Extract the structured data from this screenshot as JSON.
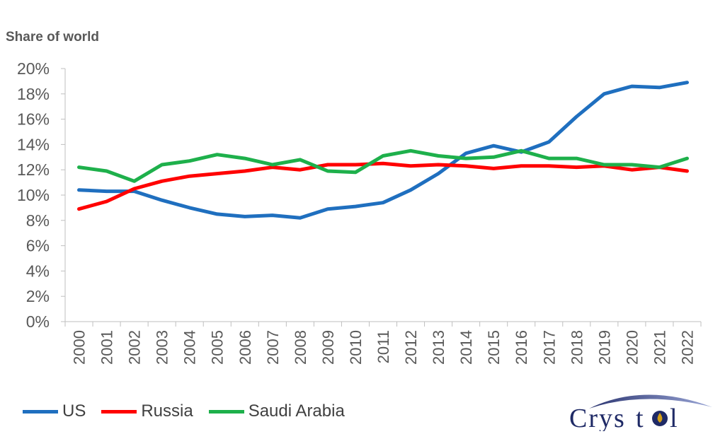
{
  "chart_data": {
    "type": "line",
    "ylabel": "Share of world",
    "categories": [
      "2000",
      "2001",
      "2002",
      "2003",
      "2004",
      "2005",
      "2006",
      "2007",
      "2008",
      "2009",
      "2010",
      "2011",
      "2012",
      "2013",
      "2014",
      "2015",
      "2016",
      "2017",
      "2018",
      "2019",
      "2020",
      "2021",
      "2022"
    ],
    "yticks": [
      "0%",
      "2%",
      "4%",
      "6%",
      "8%",
      "10%",
      "12%",
      "14%",
      "16%",
      "18%",
      "20%"
    ],
    "ylim": [
      0,
      20
    ],
    "grid": false,
    "legend_position": "bottom-left",
    "series": [
      {
        "name": "US",
        "color": "#1F6FBF",
        "values": [
          10.4,
          10.3,
          10.3,
          9.6,
          9.0,
          8.5,
          8.3,
          8.4,
          8.2,
          8.9,
          9.1,
          9.4,
          10.4,
          11.7,
          13.3,
          13.9,
          13.4,
          14.2,
          16.2,
          18.0,
          18.6,
          18.5,
          18.9
        ]
      },
      {
        "name": "Russia",
        "color": "#FF0000",
        "values": [
          8.9,
          9.5,
          10.5,
          11.1,
          11.5,
          11.7,
          11.9,
          12.2,
          12.0,
          12.4,
          12.4,
          12.5,
          12.3,
          12.4,
          12.3,
          12.1,
          12.3,
          12.3,
          12.2,
          12.3,
          12.0,
          12.2,
          11.9
        ]
      },
      {
        "name": "Saudi Arabia",
        "color": "#1EB04B",
        "values": [
          12.2,
          11.9,
          11.1,
          12.4,
          12.7,
          13.2,
          12.9,
          12.4,
          12.8,
          11.9,
          11.8,
          13.1,
          13.5,
          13.1,
          12.9,
          13.0,
          13.5,
          12.9,
          12.9,
          12.4,
          12.4,
          12.2,
          12.9
        ]
      }
    ]
  },
  "logo": {
    "text": "Crystol"
  }
}
